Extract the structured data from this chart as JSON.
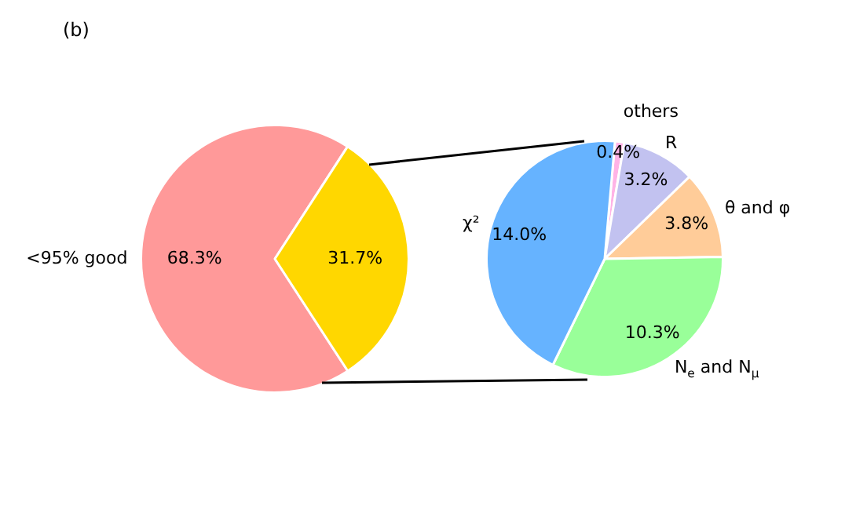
{
  "chart_data": [
    {
      "type": "pie",
      "title": "(b)",
      "categories": [
        "<95% good",
        null
      ],
      "values": [
        68.3,
        31.7
      ],
      "colors": [
        "#ff9999",
        "#ffd700"
      ],
      "value_labels": [
        "68.3%",
        "31.7%"
      ],
      "legend": false
    },
    {
      "type": "pie",
      "categories": [
        "others",
        "R",
        "θ and φ",
        "N$_{e}$ and N$_{μ}$",
        "χ²"
      ],
      "values": [
        0.4,
        3.2,
        3.8,
        10.3,
        14.0
      ],
      "colors": [
        "#ffb3e6",
        "#c2c2f0",
        "#ffcc99",
        "#99ff99",
        "#66b3ff"
      ],
      "value_labels": [
        "0.4%",
        "3.2%",
        "3.8%",
        "10.3%",
        "14.0%"
      ],
      "legend": false
    }
  ]
}
